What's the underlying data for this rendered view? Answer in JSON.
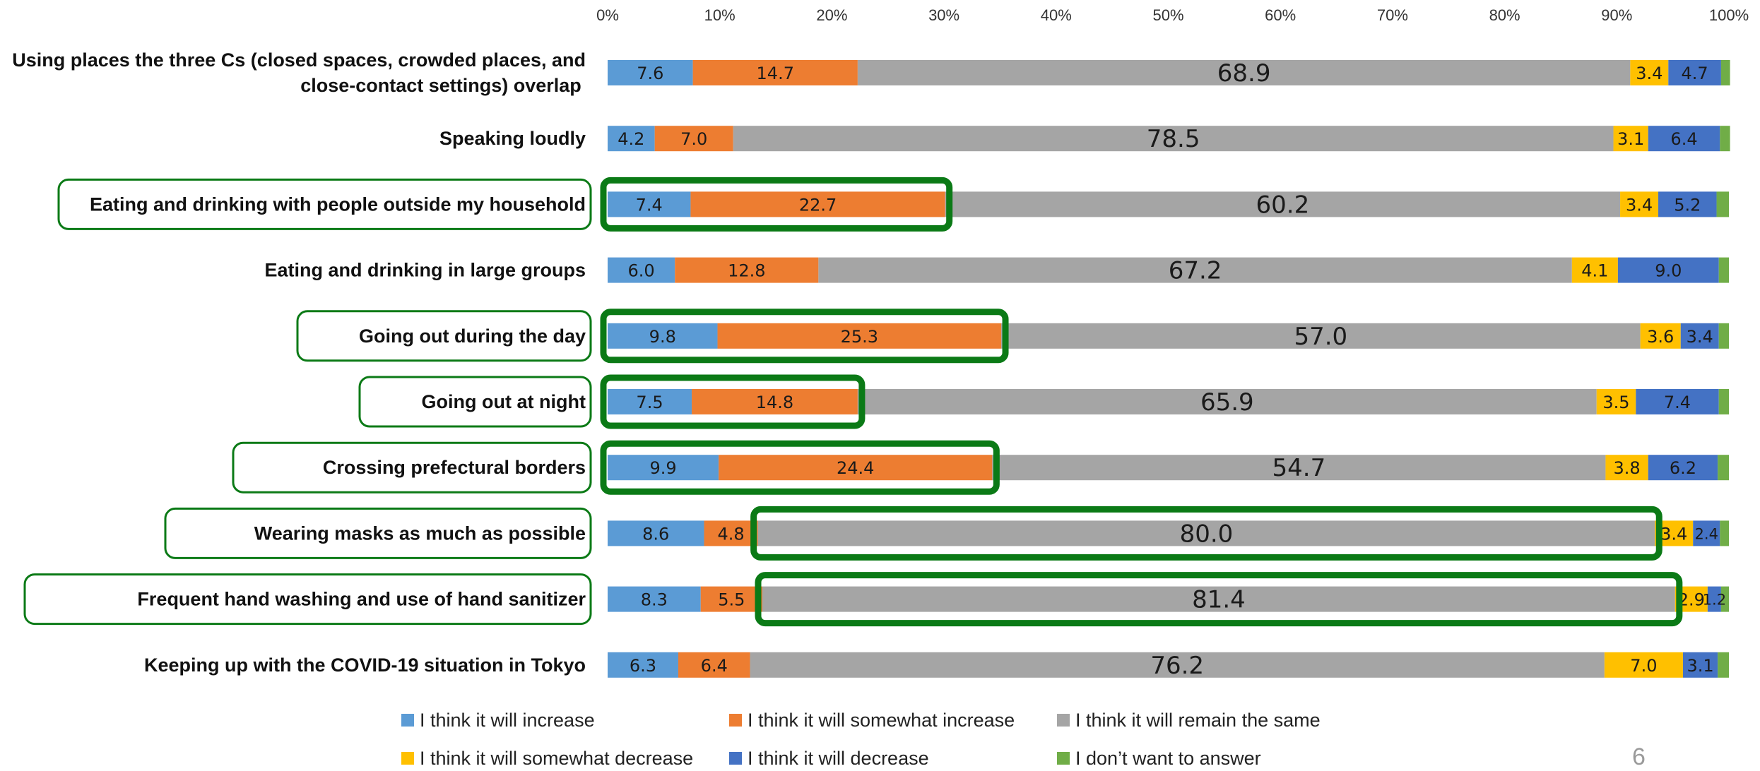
{
  "page_number": "6",
  "chart_data": {
    "type": "bar",
    "orientation": "horizontal",
    "stacked": "percent",
    "x_axis": {
      "range": [
        0,
        100
      ],
      "ticks": [
        "0%",
        "10%",
        "20%",
        "30%",
        "40%",
        "50%",
        "60%",
        "70%",
        "80%",
        "90%",
        "100%"
      ],
      "position": "top"
    },
    "categories": [
      [
        "Using places the three Cs (closed spaces, crowded places, and",
        "close-contact settings) overlap"
      ],
      [
        "Speaking loudly"
      ],
      [
        "Eating and drinking with people outside my household"
      ],
      [
        "Eating and drinking in large groups"
      ],
      [
        "Going out during the day"
      ],
      [
        "Going out at night"
      ],
      [
        "Crossing prefectural borders"
      ],
      [
        "Wearing masks as much as possible"
      ],
      [
        "Frequent hand washing and use of hand sanitizer"
      ],
      [
        "Keeping up with the COVID-19 situation in Tokyo"
      ]
    ],
    "series": [
      {
        "name": "I think it will increase",
        "color": "#5b9bd5",
        "values": [
          7.6,
          4.2,
          7.4,
          6.0,
          9.8,
          7.5,
          9.9,
          8.6,
          8.3,
          6.3
        ]
      },
      {
        "name": "I think it will somewhat increase",
        "color": "#ed7d31",
        "values": [
          14.7,
          7.0,
          22.7,
          12.8,
          25.3,
          14.8,
          24.4,
          4.8,
          5.5,
          6.4
        ]
      },
      {
        "name": "I think it will remain the same",
        "color": "#a5a5a5",
        "values": [
          68.9,
          78.5,
          60.2,
          67.2,
          57.0,
          65.9,
          54.7,
          80.0,
          81.4,
          76.2
        ]
      },
      {
        "name": "I think it will somewhat decrease",
        "color": "#ffc000",
        "values": [
          3.4,
          3.1,
          3.4,
          4.1,
          3.6,
          3.5,
          3.8,
          3.4,
          2.9,
          7.0
        ]
      },
      {
        "name": "I think it will decrease",
        "color": "#4472c4",
        "values": [
          4.7,
          6.4,
          5.2,
          9.0,
          3.4,
          7.4,
          6.2,
          2.4,
          1.2,
          3.1
        ]
      },
      {
        "name": "I don’t want to answer",
        "color": "#70ad47",
        "values": [
          0.8,
          0.9,
          1.1,
          0.9,
          0.9,
          0.9,
          1.0,
          0.8,
          0.7,
          1.0
        ]
      }
    ],
    "labeled_series": [
      0,
      1,
      2,
      3,
      4
    ],
    "highlight_color": "#0b7a16",
    "label_highlights": [
      2,
      4,
      5,
      6,
      7,
      8
    ],
    "bar_highlights": [
      {
        "row": 2,
        "series_from": 0,
        "series_to": 1
      },
      {
        "row": 4,
        "series_from": 0,
        "series_to": 1
      },
      {
        "row": 5,
        "series_from": 0,
        "series_to": 1
      },
      {
        "row": 6,
        "series_from": 0,
        "series_to": 1
      },
      {
        "row": 7,
        "series_from": 2,
        "series_to": 2
      },
      {
        "row": 8,
        "series_from": 2,
        "series_to": 2
      }
    ],
    "legend": {
      "position": "bottom"
    }
  }
}
